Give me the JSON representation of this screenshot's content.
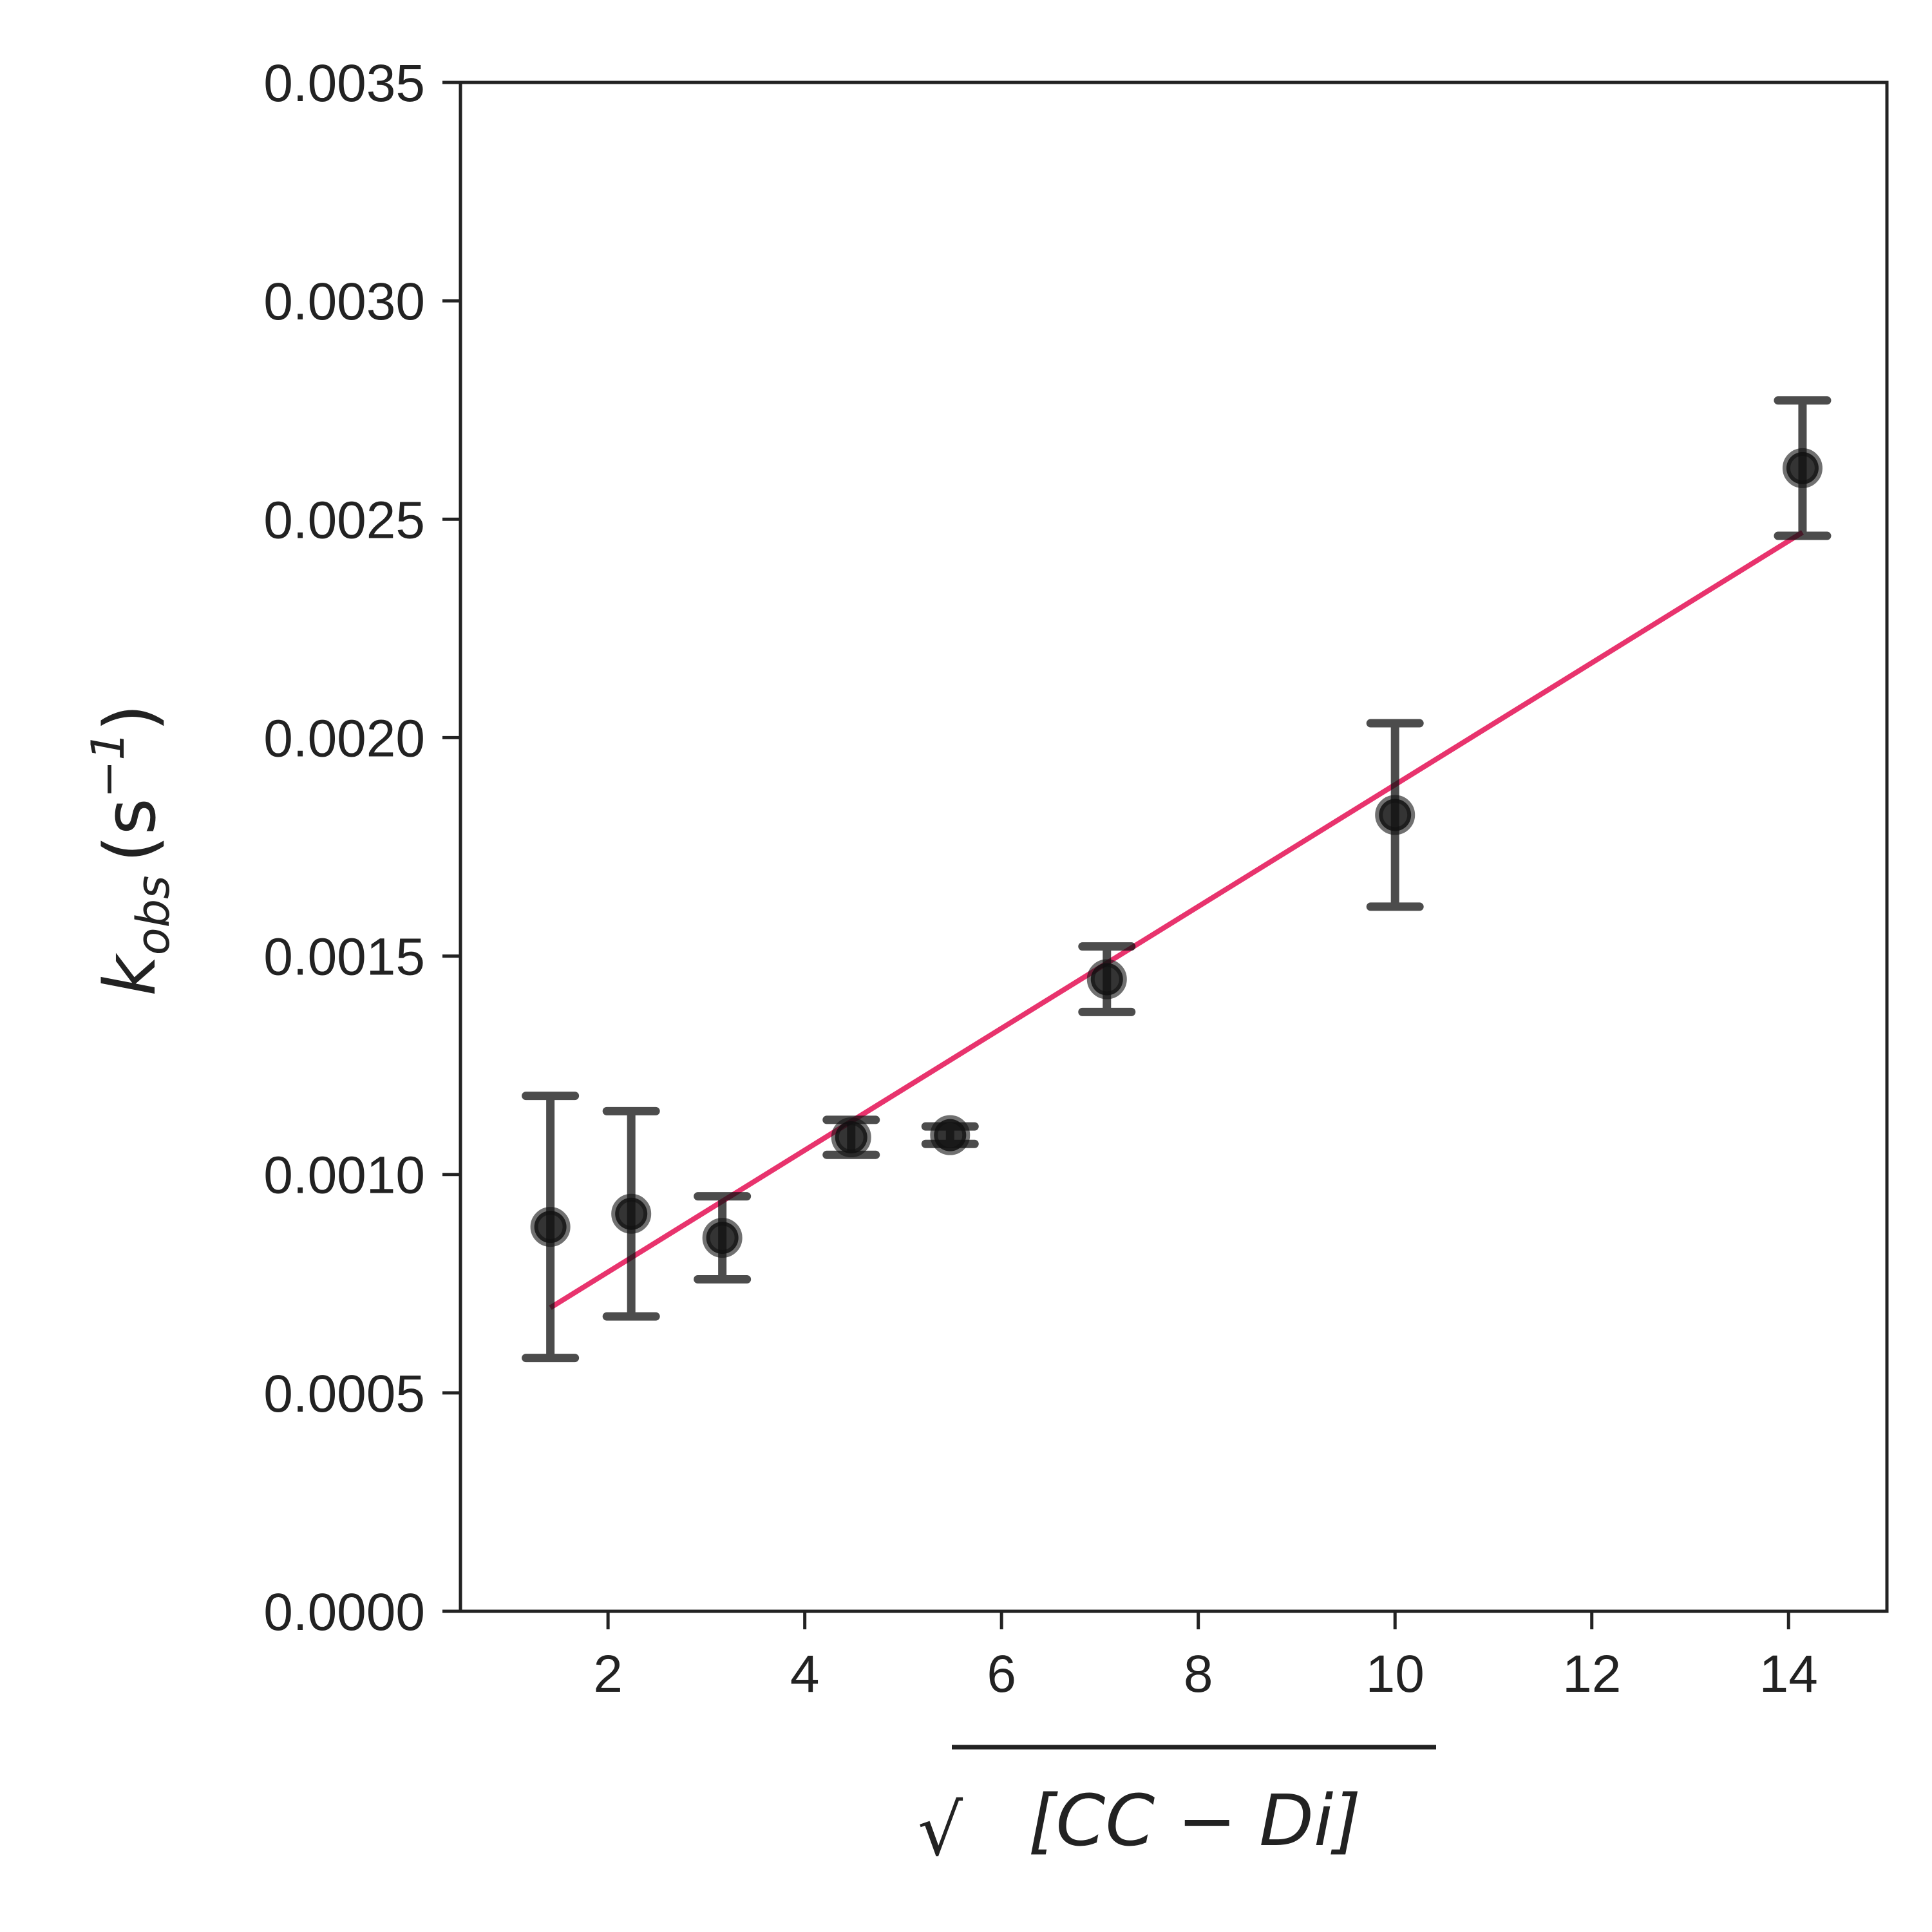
{
  "chart_data": {
    "type": "scatter",
    "xlabel": "√[CC − Di]",
    "ylabel": "k_obs (s^-1)",
    "ylabel_parts": {
      "symbol": "k",
      "subscript": "obs",
      "unit_open": "(s",
      "unit_exp": "−1",
      "unit_close": ")"
    },
    "xlabel_parts": {
      "radicand": "[CC − Di]"
    },
    "xlim": [
      0.5,
      15
    ],
    "ylim": [
      0,
      0.0035
    ],
    "xticks": [
      2,
      4,
      6,
      8,
      10,
      12,
      14
    ],
    "xtick_labels": [
      "2",
      "4",
      "6",
      "8",
      "10",
      "12",
      "14"
    ],
    "yticks": [
      0,
      0.0005,
      0.001,
      0.0015,
      0.002,
      0.0025,
      0.003,
      0.0035
    ],
    "ytick_labels": [
      "0.0000",
      "0.0005",
      "0.0010",
      "0.0015",
      "0.0020",
      "0.0025",
      "0.0030",
      "0.0035"
    ],
    "grid": false,
    "series": [
      {
        "kind": "errorbar",
        "x": [
          1.414,
          2.236,
          3.162,
          4.472,
          5.477,
          7.071,
          10.0,
          14.142
        ],
        "y": [
          0.00088,
          0.00091,
          0.000855,
          0.001085,
          0.00109,
          0.001447,
          0.001823,
          0.002617
        ],
        "yerr": [
          0.0003,
          0.000235,
          9.5e-05,
          4e-05,
          2e-05,
          7.5e-05,
          0.00021,
          0.000155
        ],
        "color": "#111111"
      },
      {
        "kind": "line",
        "x": [
          1.414,
          14.142
        ],
        "y": [
          0.000695,
          0.00247
        ],
        "color": "#e8336d"
      }
    ]
  }
}
